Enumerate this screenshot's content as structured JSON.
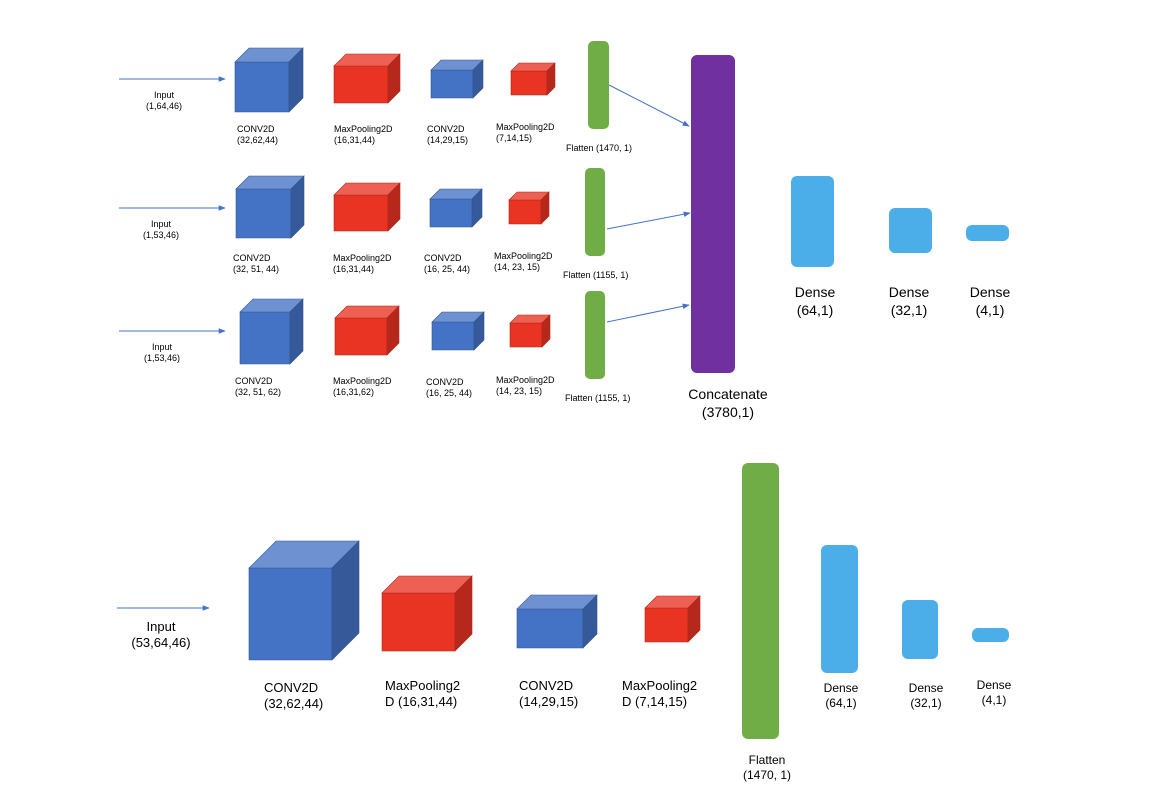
{
  "colors": {
    "conv": "#4472c4",
    "pool": "#e93323",
    "flatten": "#70ad47",
    "concat": "#7030a0",
    "dense": "#4baee8",
    "arrow": "#4472c4"
  },
  "top_model": {
    "branches": [
      {
        "input": {
          "name": "Input",
          "shape": "(1,64,46)"
        },
        "conv1": {
          "name": "CONV2D",
          "shape": "(32,62,44)"
        },
        "pool1": {
          "name": "MaxPooling2D",
          "shape": "(16,31,44)"
        },
        "conv2": {
          "name": "CONV2D",
          "shape": "(14,29,15)"
        },
        "pool2": {
          "name": "MaxPooling2D",
          "shape": "(7,14,15)"
        },
        "flatten": {
          "label": "Flatten (1470, 1)"
        }
      },
      {
        "input": {
          "name": "Input",
          "shape": "(1,53,46)"
        },
        "conv1": {
          "name": "CONV2D",
          "shape": "(32, 51, 44)"
        },
        "pool1": {
          "name": "MaxPooling2D",
          "shape": "(16,31,44)"
        },
        "conv2": {
          "name": "CONV2D",
          "shape": "(16, 25, 44)"
        },
        "pool2": {
          "name": "MaxPooling2D",
          "shape": "(14, 23, 15)"
        },
        "flatten": {
          "label": "Flatten (1155, 1)"
        }
      },
      {
        "input": {
          "name": "Input",
          "shape": "(1,53,46)"
        },
        "conv1": {
          "name": "CONV2D",
          "shape": "(32, 51, 62)"
        },
        "pool1": {
          "name": "MaxPooling2D",
          "shape": "(16,31,62)"
        },
        "conv2": {
          "name": "CONV2D",
          "shape": "(16, 25, 44)"
        },
        "pool2": {
          "name": "MaxPooling2D",
          "shape": "(14, 23, 15)"
        },
        "flatten": {
          "label": "Flatten (1155, 1)"
        }
      }
    ],
    "concatenate": {
      "name": "Concatenate",
      "shape": "(3780,1)"
    },
    "dense": [
      {
        "name": "Dense",
        "shape": "(64,1)"
      },
      {
        "name": "Dense",
        "shape": "(32,1)"
      },
      {
        "name": "Dense",
        "shape": "(4,1)"
      }
    ]
  },
  "bottom_model": {
    "input": {
      "name": "Input",
      "shape": "(53,64,46)"
    },
    "conv1": {
      "name": "CONV2D",
      "shape": "(32,62,44)"
    },
    "pool1": {
      "line1": "MaxPooling2",
      "line2": "D (16,31,44)"
    },
    "conv2": {
      "name": "CONV2D",
      "shape": "(14,29,15)"
    },
    "pool2": {
      "line1": "MaxPooling2",
      "line2": "D (7,14,15)"
    },
    "flatten": {
      "name": "Flatten",
      "shape": "(1470, 1)"
    },
    "dense": [
      {
        "name": "Dense",
        "shape": "(64,1)"
      },
      {
        "name": "Dense",
        "shape": "(32,1)"
      },
      {
        "name": "Dense",
        "shape": "(4,1)"
      }
    ]
  }
}
